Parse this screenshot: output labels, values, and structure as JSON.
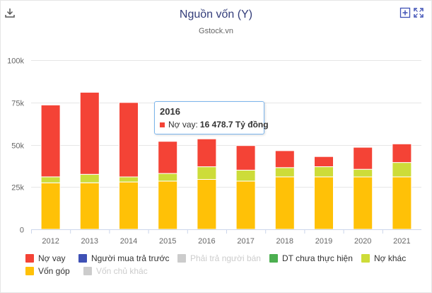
{
  "header": {
    "title": "Nguồn vốn (Y)",
    "subtitle": "Gstock.vn"
  },
  "icons": {
    "download": "download-icon",
    "add": "plus-box-icon",
    "fullscreen": "fullscreen-icon"
  },
  "colors": {
    "no_vay": "#f44336",
    "nguoi_mua": "#3f51b5",
    "phai_tra": "#cccccc",
    "dt_chua": "#4caf50",
    "no_khac": "#cddc39",
    "von_gop": "#ffc107",
    "von_chu": "#cccccc"
  },
  "chart_data": {
    "type": "bar",
    "stacked": true,
    "categories": [
      "2012",
      "2013",
      "2014",
      "2015",
      "2016",
      "2017",
      "2018",
      "2019",
      "2020",
      "2021"
    ],
    "series": [
      {
        "name": "Vốn góp",
        "key": "von_gop",
        "values": [
          27500,
          27500,
          28000,
          28500,
          29500,
          28500,
          31000,
          31000,
          31000,
          31000
        ]
      },
      {
        "name": "Nợ khác",
        "key": "no_khac",
        "values": [
          3500,
          5000,
          3000,
          4500,
          7500,
          6500,
          5500,
          6000,
          4500,
          8500
        ]
      },
      {
        "name": "Nợ vay",
        "key": "no_vay",
        "values": [
          42500,
          48500,
          44000,
          19000,
          16478.7,
          14500,
          10000,
          6000,
          13000,
          11000
        ]
      }
    ],
    "ylim": [
      0,
      100000
    ],
    "yticks": [
      0,
      25000,
      50000,
      75000,
      100000
    ],
    "ytick_labels": [
      "0",
      "25k",
      "50k",
      "75k",
      "100k"
    ],
    "grid": true,
    "legend_position": "bottom",
    "legend": [
      {
        "label": "Nợ vay",
        "key": "no_vay",
        "visible": true
      },
      {
        "label": "Người mua trả trước",
        "key": "nguoi_mua",
        "visible": true
      },
      {
        "label": "Phải trả người bán",
        "key": "phai_tra",
        "visible": false
      },
      {
        "label": "DT chưa thực hiện",
        "key": "dt_chua",
        "visible": true
      },
      {
        "label": "Nợ khác",
        "key": "no_khac",
        "visible": true
      },
      {
        "label": "Vốn góp",
        "key": "von_gop",
        "visible": true
      },
      {
        "label": "Vốn chủ khác",
        "key": "von_chu",
        "visible": false
      }
    ],
    "tooltip": {
      "category": "2016",
      "series": "Nợ vay",
      "label": "Nợ vay:",
      "value": "16 478.7 Tỷ đồng"
    }
  }
}
